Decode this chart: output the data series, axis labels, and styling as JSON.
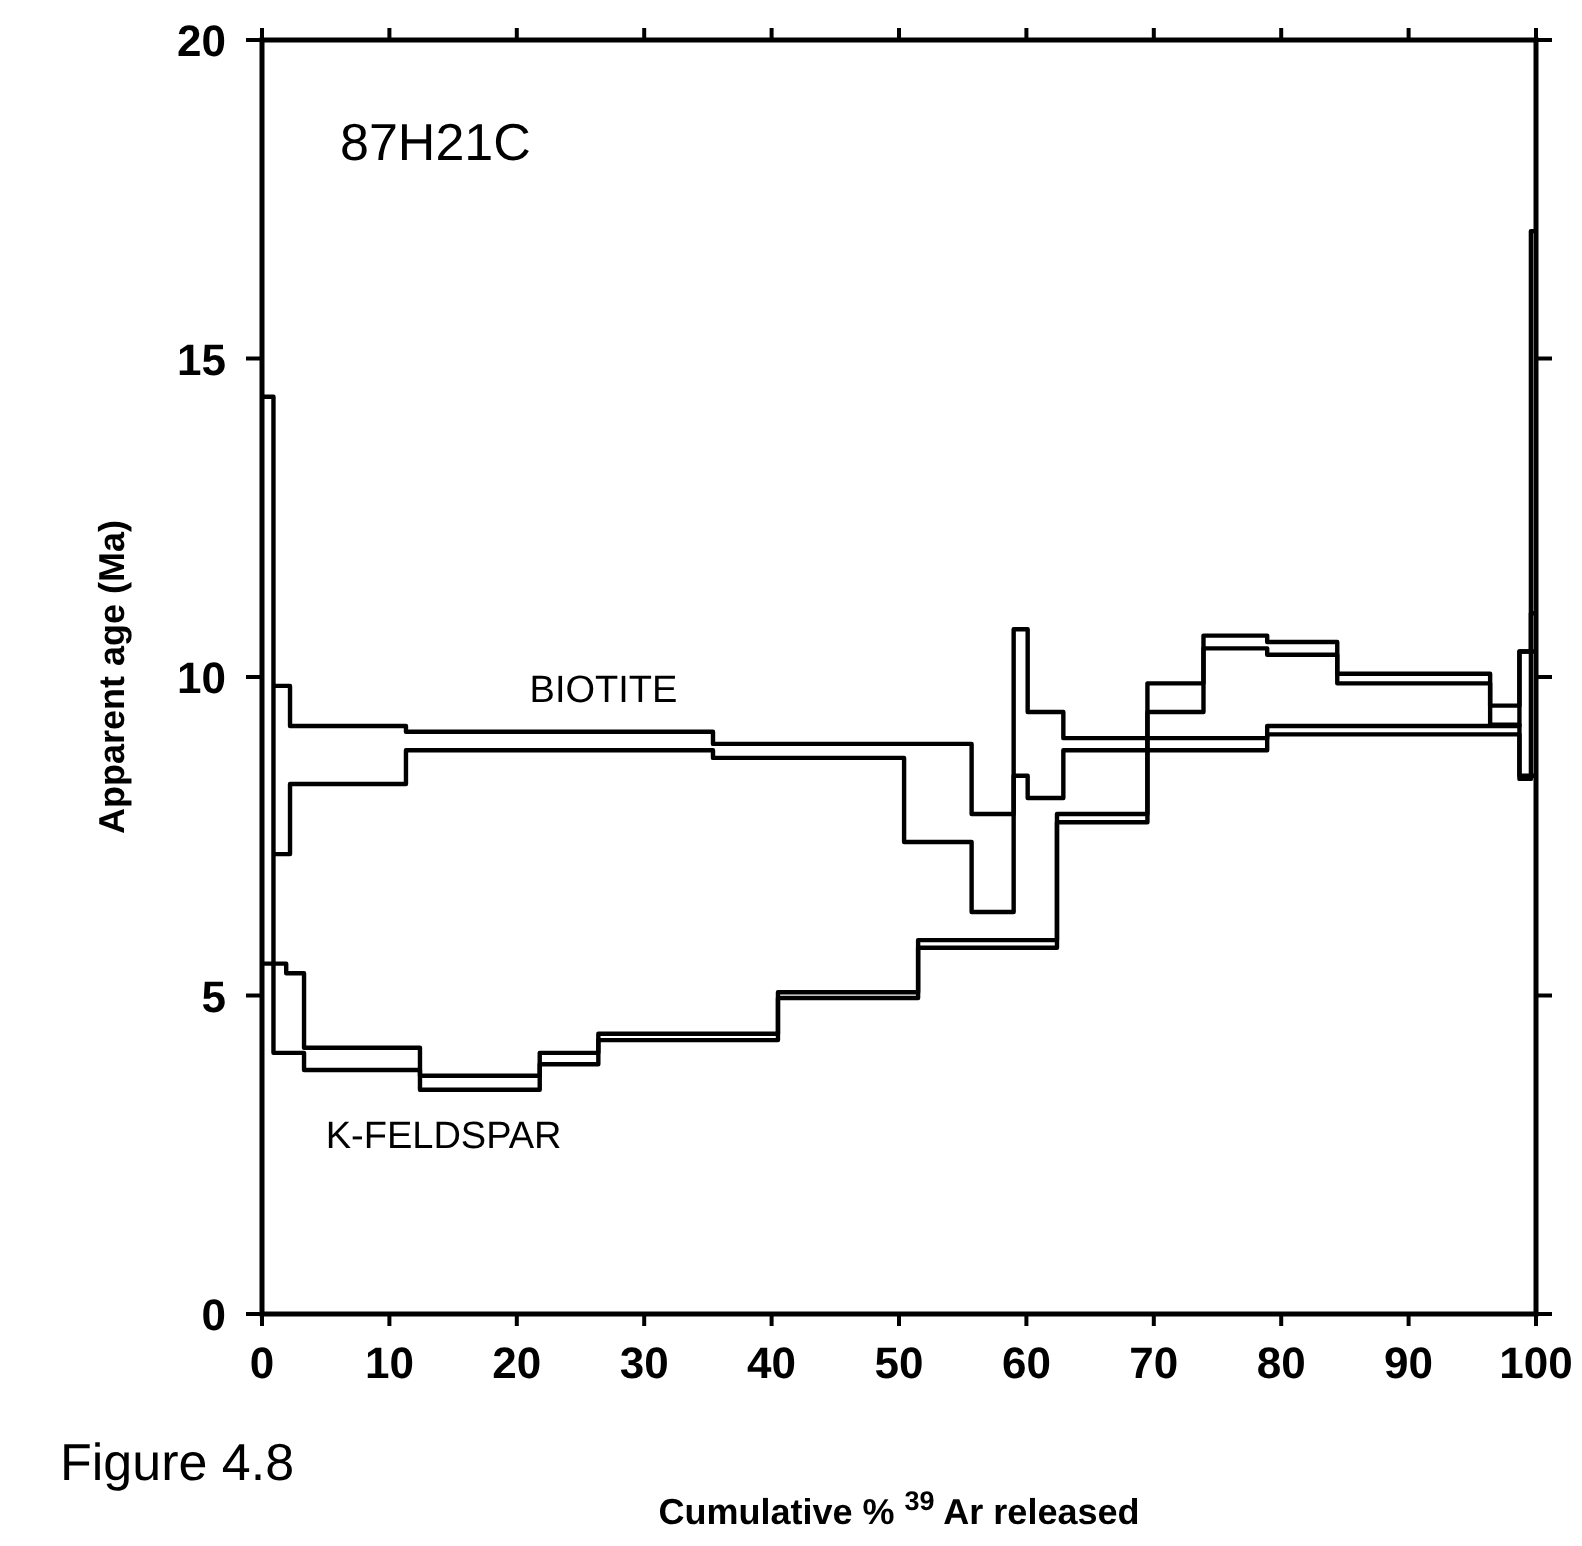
{
  "chart_data": {
    "type": "step",
    "xlabel": "Cumulative % $^{39}$Ar released",
    "ylabel": "Apparent age (Ma)",
    "annotations": [
      "87H21C",
      "Figure 4.8"
    ],
    "xlim": [
      0,
      100
    ],
    "xticks": [
      0,
      10,
      20,
      30,
      40,
      50,
      60,
      70,
      80,
      90,
      100
    ],
    "ylim": [
      0,
      20
    ],
    "yticks": [
      0,
      5,
      10,
      15,
      20
    ],
    "grid": false,
    "legend": false,
    "marker": "none",
    "line_style": "solid",
    "series": [
      {
        "name": "BIOTITE",
        "color": "#000000",
        "x": [
          0.9,
          2.2,
          11.3,
          35.4,
          50.4,
          55.7,
          59.0,
          60.1,
          62.9,
          78.9,
          98.7,
          100
        ],
        "values": [
          9.86,
          9.23,
          9.14,
          8.95,
          8.95,
          7.85,
          10.75,
          9.45,
          9.04,
          9.23,
          10.4,
          10.4
        ]
      },
      {
        "color": "#000000",
        "x": [
          0.9,
          2.2,
          11.3,
          35.4,
          50.4,
          55.7,
          59.0,
          60.1,
          62.9,
          78.9,
          98.7,
          100
        ],
        "values": [
          7.22,
          8.32,
          8.85,
          8.73,
          7.41,
          6.31,
          8.45,
          8.1,
          8.85,
          9.1,
          8.45,
          8.45
        ]
      },
      {
        "name": "K-FELDSPAR",
        "color": "#000000",
        "x": [
          0,
          0.9,
          1.9,
          3.3,
          5.3,
          12.4,
          21.8,
          26.4,
          40.5,
          51.5,
          62.4,
          69.5,
          73.9,
          78.9,
          84.4,
          96.4,
          98.7,
          99.6,
          100
        ],
        "values": [
          14.4,
          5.5,
          5.35,
          4.18,
          4.18,
          3.74,
          4.1,
          4.4,
          5.05,
          5.87,
          7.85,
          9.9,
          10.65,
          10.55,
          10.05,
          9.55,
          10.4,
          17,
          17
        ]
      },
      {
        "color": "#000000",
        "x": [
          0,
          0.9,
          1.9,
          3.3,
          5.3,
          12.4,
          21.8,
          26.4,
          40.5,
          51.5,
          62.4,
          69.5,
          73.9,
          78.9,
          84.4,
          96.4,
          98.7,
          99.6,
          100
        ],
        "values": [
          5.5,
          4.1,
          4.1,
          3.83,
          3.83,
          3.52,
          3.92,
          4.3,
          4.96,
          5.75,
          7.72,
          9.45,
          10.45,
          10.35,
          9.9,
          9.25,
          8.4,
          11,
          11
        ]
      }
    ]
  }
}
